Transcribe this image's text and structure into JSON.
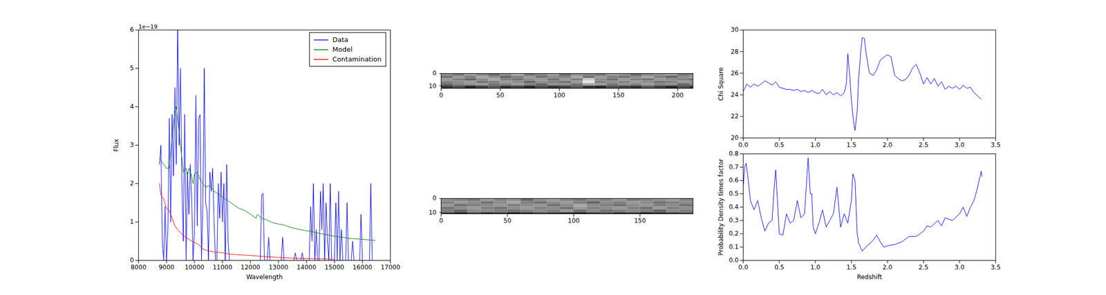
{
  "chart_data": [
    {
      "type": "line",
      "xlabel": "Wavelength",
      "ylabel": "Flux",
      "y_scale_label": "1e−19",
      "xlim": [
        8000,
        17000
      ],
      "xticks": [
        8000,
        9000,
        10000,
        11000,
        12000,
        13000,
        14000,
        15000,
        16000,
        17000
      ],
      "ylim": [
        0,
        6
      ],
      "yticks": [
        0,
        1,
        2,
        3,
        4,
        5,
        6
      ],
      "legend": "upper right",
      "series": [
        {
          "name": "Data",
          "color": "blue",
          "x": [
            8750,
            8800,
            8850,
            8900,
            8950,
            9000,
            9050,
            9100,
            9150,
            9200,
            9250,
            9300,
            9350,
            9400,
            9450,
            9500,
            9550,
            9600,
            9650,
            9700,
            9750,
            9800,
            9850,
            9900,
            9950,
            10000,
            10050,
            10100,
            10150,
            10200,
            10250,
            10300,
            10350,
            10400,
            10450,
            10500,
            10550,
            10600,
            10650,
            10700,
            10750,
            10800,
            10850,
            10900,
            10950,
            11000,
            11050,
            11100,
            11150,
            11200,
            11250,
            12350,
            12400,
            12450,
            12500,
            12600,
            12650,
            12700,
            13100,
            13150,
            13200,
            13550,
            13600,
            13650,
            13800,
            13850,
            13900,
            14100,
            14150,
            14200,
            14250,
            14300,
            14350,
            14400,
            14450,
            14500,
            14550,
            14600,
            14650,
            14700,
            14750,
            14800,
            14850,
            14900,
            15000,
            15050,
            15100,
            15150,
            15200,
            15250,
            15300,
            15400,
            15450,
            15500,
            15600,
            15650,
            15700,
            15900,
            15950,
            16000,
            16250,
            16300,
            16350,
            16450
          ],
          "values": [
            2.5,
            3.0,
            0.5,
            0,
            1.4,
            0,
            0.8,
            3.7,
            1.0,
            3.8,
            2.2,
            4.5,
            2.5,
            6.0,
            3.0,
            5.0,
            2.0,
            0.5,
            3.8,
            0,
            2.3,
            1.2,
            2.5,
            1.6,
            0,
            0.8,
            4.3,
            0.9,
            3.7,
            3.8,
            0,
            1.5,
            5.0,
            1.5,
            1.3,
            0,
            2.3,
            1.8,
            2.4,
            1.0,
            0,
            0,
            2.0,
            1.1,
            2.3,
            1.0,
            2.0,
            0,
            2.5,
            0.5,
            0,
            0,
            1.7,
            1.75,
            0,
            0,
            0.6,
            0,
            0,
            0.6,
            0,
            0,
            0.2,
            0,
            0,
            0.2,
            0,
            0,
            1.4,
            0.5,
            2.0,
            0,
            0.8,
            0,
            0,
            1.8,
            0.8,
            2.0,
            0,
            1.5,
            0.5,
            0,
            2.0,
            0,
            0,
            1.5,
            0,
            1.8,
            0,
            0.8,
            0,
            0,
            1.5,
            0,
            0,
            0.5,
            0,
            0,
            1.2,
            0,
            0,
            2.0,
            0,
            0
          ]
        },
        {
          "name": "Model",
          "color": "green",
          "x": [
            8750,
            8900,
            9000,
            9100,
            9200,
            9300,
            9350,
            9400,
            9500,
            9600,
            9700,
            9750,
            9800,
            9900,
            9950,
            10000,
            10100,
            10200,
            10300,
            10400,
            10500,
            10600,
            10700,
            10800,
            11000,
            11200,
            11400,
            11600,
            11800,
            12000,
            12200,
            12250,
            12400,
            12600,
            12800,
            13000,
            13200,
            13400,
            13600,
            13800,
            14000,
            14200,
            14500,
            14800,
            15000,
            15300,
            15600,
            16000,
            16450
          ],
          "values": [
            2.65,
            2.5,
            2.4,
            2.4,
            3.2,
            3.9,
            4.0,
            3.7,
            3.0,
            2.3,
            2.4,
            2.2,
            2.4,
            2.2,
            2.0,
            2.25,
            2.3,
            2.1,
            2.0,
            1.9,
            1.95,
            1.9,
            1.8,
            1.75,
            1.65,
            1.55,
            1.45,
            1.35,
            1.3,
            1.2,
            1.1,
            1.2,
            1.1,
            1.05,
            0.98,
            0.95,
            0.92,
            0.87,
            0.83,
            0.8,
            0.77,
            0.75,
            0.7,
            0.66,
            0.63,
            0.6,
            0.57,
            0.55,
            0.52
          ]
        },
        {
          "name": "Contamination",
          "color": "red",
          "x": [
            8750,
            8800,
            8900,
            9000,
            9100,
            9200,
            9300,
            9400,
            9500,
            9600,
            9700,
            9800,
            9900,
            10000,
            10100,
            10200,
            10300,
            10400,
            10500,
            10700,
            11000,
            11200,
            11500,
            12000,
            12500,
            13000,
            13500,
            14000,
            14500,
            15000
          ],
          "values": [
            2.0,
            1.7,
            1.6,
            1.35,
            1.3,
            1.1,
            0.9,
            0.8,
            0.72,
            0.65,
            0.6,
            0.55,
            0.5,
            0.47,
            0.43,
            0.38,
            0.3,
            0.27,
            0.25,
            0.22,
            0.2,
            0.17,
            0.15,
            0.13,
            0.1,
            0.08,
            0.06,
            0.05,
            0.04,
            0.03
          ]
        }
      ]
    },
    {
      "type": "heatmap",
      "xlim": [
        0,
        213
      ],
      "xticks": [
        0,
        50,
        100,
        150,
        200
      ],
      "ylim": [
        0,
        12
      ],
      "yticks": [
        0,
        10
      ],
      "zlim": [
        -1,
        1
      ],
      "x_bins": [
        0,
        10,
        20,
        30,
        40,
        50,
        60,
        70,
        80,
        90,
        100,
        110,
        120,
        130,
        140,
        150,
        160,
        170,
        180,
        190,
        200,
        210,
        213
      ],
      "y_bins": [
        0,
        2,
        4,
        6,
        8,
        10,
        12
      ],
      "cells": [
        [
          0.1,
          -0.1,
          0.2,
          0.0,
          -0.2,
          0.1,
          0.3,
          -0.1,
          0.0,
          0.2,
          -0.2,
          0.1,
          0.0,
          -0.1,
          0.2,
          0.1,
          -0.2,
          0.0,
          0.1,
          0.2,
          -0.1,
          0.0
        ],
        [
          -0.1,
          0.2,
          0.0,
          0.3,
          0.1,
          -0.2,
          0.0,
          0.2,
          -0.1,
          0.1,
          0.0,
          0.3,
          -0.1,
          0.2,
          0.0,
          -0.1,
          0.1,
          0.3,
          0.0,
          -0.2,
          0.1,
          0.2
        ],
        [
          0.2,
          0.0,
          -0.2,
          0.1,
          0.3,
          0.0,
          -0.1,
          0.1,
          0.2,
          -0.1,
          0.2,
          0.0,
          0.6,
          0.1,
          -0.1,
          0.2,
          0.0,
          -0.1,
          0.2,
          0.1,
          0.0,
          -0.1
        ],
        [
          0.0,
          0.1,
          0.2,
          -0.1,
          0.0,
          0.2,
          0.1,
          -0.2,
          0.1,
          0.0,
          -0.1,
          0.2,
          0.8,
          0.0,
          0.1,
          0.0,
          0.2,
          0.1,
          -0.1,
          0.0,
          0.2,
          0.1
        ],
        [
          -0.2,
          0.0,
          0.1,
          0.2,
          -0.1,
          0.0,
          0.2,
          0.0,
          -0.2,
          0.1,
          0.1,
          -0.1,
          0.3,
          0.2,
          -0.1,
          0.1,
          0.0,
          0.2,
          0.0,
          0.1,
          -0.2,
          0.0
        ],
        [
          -0.6,
          -0.4,
          -0.7,
          -0.5,
          -0.3,
          -0.6,
          -0.5,
          -0.7,
          -0.4,
          -0.6,
          -0.5,
          -0.3,
          -0.6,
          -0.7,
          -0.4,
          -0.5,
          -0.6,
          -0.3,
          -0.5,
          -0.7,
          -0.4,
          -0.6
        ]
      ]
    },
    {
      "type": "heatmap",
      "xlim": [
        0,
        190
      ],
      "xticks": [
        0,
        50,
        100,
        150
      ],
      "ylim": [
        0,
        11
      ],
      "yticks": [
        0,
        10
      ],
      "zlim": [
        -1,
        1
      ],
      "x_bins": [
        0,
        10,
        20,
        30,
        40,
        50,
        60,
        70,
        80,
        90,
        100,
        110,
        120,
        130,
        140,
        150,
        160,
        170,
        180,
        190
      ],
      "y_bins": [
        0,
        2,
        4,
        6,
        8,
        10,
        11
      ],
      "cells": [
        [
          0.1,
          0.0,
          -0.1,
          0.2,
          0.0,
          0.1,
          -0.2,
          0.1,
          0.2,
          0.0,
          -0.1,
          0.1,
          0.0,
          0.2,
          -0.1,
          0.0,
          0.1,
          0.2,
          0.0
        ],
        [
          0.0,
          0.2,
          0.1,
          -0.1,
          0.1,
          0.3,
          0.0,
          -0.1,
          0.1,
          0.2,
          0.0,
          -0.2,
          0.1,
          0.0,
          0.2,
          0.1,
          -0.1,
          0.0,
          0.1
        ],
        [
          0.2,
          -0.1,
          0.0,
          0.1,
          0.2,
          0.0,
          0.1,
          0.2,
          -0.1,
          0.1,
          0.3,
          0.1,
          0.0,
          -0.1,
          0.1,
          0.2,
          0.0,
          0.1,
          -0.1
        ],
        [
          -0.1,
          0.1,
          0.2,
          0.0,
          -0.1,
          0.1,
          0.2,
          0.0,
          0.1,
          -0.1,
          0.2,
          0.0,
          0.1,
          0.2,
          0.0,
          -0.1,
          0.2,
          0.0,
          0.1
        ],
        [
          0.0,
          -0.2,
          0.1,
          0.1,
          0.0,
          -0.1,
          0.0,
          0.1,
          0.0,
          0.2,
          -0.1,
          0.1,
          -0.1,
          0.0,
          0.1,
          0.0,
          -0.2,
          0.1,
          0.0
        ],
        [
          -0.5,
          -0.7,
          -0.4,
          -0.6,
          -0.5,
          -0.7,
          -0.6,
          -0.4,
          -0.5,
          -0.6,
          -0.7,
          -0.5,
          -0.4,
          -0.6,
          -0.5,
          -0.7,
          -0.6,
          -0.5,
          -0.4
        ]
      ]
    },
    {
      "type": "line",
      "ylabel": "Chi Square",
      "xlim": [
        0,
        3.5
      ],
      "xticks": [
        {
          "value": 0,
          "label": "0.0"
        },
        0.5,
        {
          "value": 1,
          "label": "1.0"
        },
        1.5,
        {
          "value": 2,
          "label": "2.0"
        },
        2.5,
        {
          "value": 3,
          "label": "3.0"
        },
        3.5
      ],
      "ylim": [
        20,
        30
      ],
      "yticks": [
        20,
        22,
        24,
        26,
        28,
        30
      ],
      "series": [
        {
          "color": "blue",
          "x": [
            0,
            0.05,
            0.1,
            0.15,
            0.2,
            0.25,
            0.3,
            0.35,
            0.4,
            0.45,
            0.5,
            0.55,
            0.6,
            0.65,
            0.7,
            0.75,
            0.8,
            0.85,
            0.9,
            0.95,
            1.0,
            1.05,
            1.1,
            1.15,
            1.2,
            1.25,
            1.3,
            1.35,
            1.4,
            1.43,
            1.45,
            1.48,
            1.5,
            1.53,
            1.55,
            1.58,
            1.6,
            1.63,
            1.65,
            1.68,
            1.7,
            1.75,
            1.8,
            1.85,
            1.9,
            1.95,
            2.0,
            2.05,
            2.1,
            2.15,
            2.2,
            2.25,
            2.3,
            2.35,
            2.4,
            2.45,
            2.5,
            2.55,
            2.6,
            2.65,
            2.7,
            2.75,
            2.8,
            2.85,
            2.9,
            2.95,
            3.0,
            3.05,
            3.1,
            3.15,
            3.2,
            3.25,
            3.3
          ],
          "values": [
            24.3,
            25.0,
            24.7,
            25.0,
            24.8,
            25.0,
            25.3,
            25.1,
            24.9,
            25.2,
            24.7,
            24.6,
            24.5,
            24.5,
            24.4,
            24.5,
            24.3,
            24.4,
            24.2,
            24.4,
            24.2,
            24.1,
            24.5,
            24.0,
            24.3,
            24.0,
            24.2,
            23.9,
            24.2,
            25.0,
            27.8,
            25.5,
            23.5,
            21.5,
            20.7,
            22.5,
            25.5,
            28.0,
            29.3,
            29.2,
            28.0,
            26.0,
            25.8,
            26.3,
            27.2,
            27.5,
            27.7,
            27.5,
            25.8,
            25.5,
            25.3,
            25.4,
            25.8,
            26.5,
            26.8,
            26.0,
            25.0,
            25.6,
            25.0,
            25.5,
            24.8,
            25.2,
            24.5,
            24.8,
            24.6,
            24.8,
            24.5,
            24.9,
            24.6,
            24.7,
            24.2,
            23.9,
            23.6
          ]
        }
      ]
    },
    {
      "type": "line",
      "xlabel": "Redshift",
      "ylabel": "Probability Density times factor",
      "xlim": [
        0,
        3.5
      ],
      "xticks": [
        {
          "value": 0,
          "label": "0.0"
        },
        0.5,
        {
          "value": 1,
          "label": "1.0"
        },
        1.5,
        {
          "value": 2,
          "label": "2.0"
        },
        2.5,
        {
          "value": 3,
          "label": "3.0"
        },
        3.5
      ],
      "ylim": [
        0,
        0.8
      ],
      "yticks": [
        {
          "value": 0,
          "label": "0.0"
        },
        0.1,
        0.2,
        0.3,
        0.4,
        0.5,
        0.6,
        0.7,
        0.8
      ],
      "series": [
        {
          "color": "blue",
          "x": [
            0,
            0.02,
            0.04,
            0.07,
            0.1,
            0.15,
            0.2,
            0.25,
            0.3,
            0.35,
            0.4,
            0.43,
            0.45,
            0.48,
            0.5,
            0.55,
            0.6,
            0.65,
            0.7,
            0.75,
            0.8,
            0.85,
            0.88,
            0.9,
            0.93,
            0.95,
            0.97,
            1.0,
            1.05,
            1.1,
            1.15,
            1.2,
            1.25,
            1.3,
            1.35,
            1.4,
            1.45,
            1.5,
            1.52,
            1.55,
            1.58,
            1.6,
            1.65,
            1.7,
            1.8,
            1.85,
            1.9,
            1.95,
            2.0,
            2.1,
            2.2,
            2.3,
            2.4,
            2.5,
            2.55,
            2.6,
            2.7,
            2.75,
            2.8,
            2.9,
            3.0,
            3.05,
            3.1,
            3.15,
            3.2,
            3.25,
            3.3,
            3.31
          ],
          "values": [
            0.55,
            0.7,
            0.73,
            0.6,
            0.45,
            0.38,
            0.45,
            0.32,
            0.22,
            0.28,
            0.3,
            0.55,
            0.68,
            0.4,
            0.2,
            0.19,
            0.35,
            0.28,
            0.3,
            0.45,
            0.32,
            0.35,
            0.6,
            0.77,
            0.5,
            0.5,
            0.25,
            0.2,
            0.28,
            0.38,
            0.25,
            0.3,
            0.35,
            0.55,
            0.25,
            0.35,
            0.28,
            0.45,
            0.65,
            0.6,
            0.2,
            0.13,
            0.07,
            0.1,
            0.15,
            0.19,
            0.14,
            0.1,
            0.11,
            0.12,
            0.14,
            0.18,
            0.18,
            0.22,
            0.26,
            0.25,
            0.3,
            0.26,
            0.32,
            0.3,
            0.35,
            0.4,
            0.33,
            0.4,
            0.45,
            0.55,
            0.67,
            0.63
          ]
        }
      ]
    }
  ]
}
